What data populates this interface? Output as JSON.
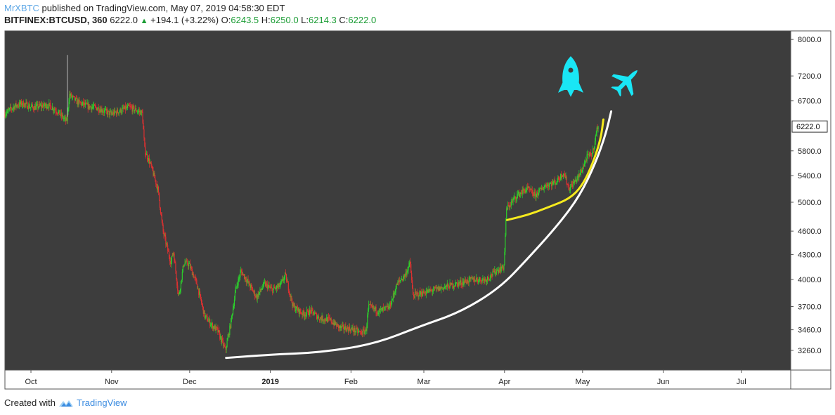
{
  "header": {
    "author": "MrXBTC",
    "published_text": "published on TradingView.com, May 07, 2019 04:58:30 EDT",
    "symbol": "BITFINEX:BTCUSD, 360",
    "last": "6222.0",
    "change": "+194.1 (+3.22%)",
    "o_label": "O:",
    "o_value": "6243.5",
    "h_label": "H:",
    "h_value": "6250.0",
    "l_label": "L:",
    "l_value": "6214.3",
    "c_label": "C:",
    "c_value": "6222.0"
  },
  "footer": {
    "created_with": "Created with",
    "brand": "TradingView"
  },
  "colors": {
    "panel": "#3d3d3d",
    "grid": "#4a4a4a",
    "up": "#2bd62b",
    "down": "#e83030",
    "white_curve": "#ffffff",
    "yellow_curve": "#f5ea1e",
    "icons": "#19e6f5"
  },
  "chart_data": {
    "type": "candlestick",
    "title": "BITFINEX:BTCUSD, 360",
    "scale": "log",
    "ylim": [
      3080,
      8200
    ],
    "y_ticks": [
      "8000.0",
      "7200.0",
      "6700.0",
      "5800.0",
      "5400.0",
      "5000.0",
      "4600.0",
      "4300.0",
      "4000.0",
      "3700.0",
      "3460.0",
      "3260.0"
    ],
    "x_ticks": [
      "Oct",
      "Nov",
      "Dec",
      "2019",
      "Feb",
      "Mar",
      "Apr",
      "May",
      "Jun",
      "Jul"
    ],
    "last_price_label": "6222.0",
    "price_path": [
      [
        "2018-09-21",
        6450
      ],
      [
        "2018-09-25",
        6600
      ],
      [
        "2018-09-28",
        6650
      ],
      [
        "2018-10-02",
        6570
      ],
      [
        "2018-10-05",
        6600
      ],
      [
        "2018-10-08",
        6620
      ],
      [
        "2018-10-11",
        6520
      ],
      [
        "2018-10-15",
        6310
      ],
      [
        "2018-10-16",
        6820
      ],
      [
        "2018-10-19",
        6680
      ],
      [
        "2018-10-23",
        6600
      ],
      [
        "2018-10-27",
        6560
      ],
      [
        "2018-11-01",
        6450
      ],
      [
        "2018-11-05",
        6520
      ],
      [
        "2018-11-08",
        6580
      ],
      [
        "2018-11-13",
        6470
      ],
      [
        "2018-11-14",
        5800
      ],
      [
        "2018-11-16",
        5600
      ],
      [
        "2018-11-19",
        5200
      ],
      [
        "2018-11-21",
        4600
      ],
      [
        "2018-11-24",
        4200
      ],
      [
        "2018-11-25",
        4350
      ],
      [
        "2018-11-27",
        3800
      ],
      [
        "2018-11-29",
        4200
      ],
      [
        "2018-12-01",
        4180
      ],
      [
        "2018-12-04",
        3950
      ],
      [
        "2018-12-07",
        3600
      ],
      [
        "2018-12-10",
        3500
      ],
      [
        "2018-12-12",
        3450
      ],
      [
        "2018-12-15",
        3260
      ],
      [
        "2018-12-17",
        3520
      ],
      [
        "2018-12-19",
        3900
      ],
      [
        "2018-12-21",
        4100
      ],
      [
        "2018-12-24",
        3950
      ],
      [
        "2018-12-27",
        3800
      ],
      [
        "2018-12-30",
        3950
      ],
      [
        "2019-01-02",
        3880
      ],
      [
        "2019-01-05",
        3930
      ],
      [
        "2019-01-07",
        4050
      ],
      [
        "2019-01-10",
        3700
      ],
      [
        "2019-01-14",
        3620
      ],
      [
        "2019-01-17",
        3650
      ],
      [
        "2019-01-20",
        3580
      ],
      [
        "2019-01-24",
        3560
      ],
      [
        "2019-01-28",
        3480
      ],
      [
        "2019-02-01",
        3470
      ],
      [
        "2019-02-05",
        3430
      ],
      [
        "2019-02-07",
        3450
      ],
      [
        "2019-02-08",
        3700
      ],
      [
        "2019-02-12",
        3650
      ],
      [
        "2019-02-16",
        3690
      ],
      [
        "2019-02-19",
        3950
      ],
      [
        "2019-02-22",
        4050
      ],
      [
        "2019-02-24",
        4200
      ],
      [
        "2019-02-25",
        3820
      ],
      [
        "2019-03-01",
        3850
      ],
      [
        "2019-03-05",
        3880
      ],
      [
        "2019-03-10",
        3920
      ],
      [
        "2019-03-15",
        3960
      ],
      [
        "2019-03-20",
        4000
      ],
      [
        "2019-03-25",
        4000
      ],
      [
        "2019-03-29",
        4100
      ],
      [
        "2019-04-01",
        4150
      ],
      [
        "2019-04-02",
        4900
      ],
      [
        "2019-04-06",
        5100
      ],
      [
        "2019-04-10",
        5200
      ],
      [
        "2019-04-13",
        5100
      ],
      [
        "2019-04-17",
        5250
      ],
      [
        "2019-04-21",
        5300
      ],
      [
        "2019-04-24",
        5450
      ],
      [
        "2019-04-26",
        5200
      ],
      [
        "2019-04-30",
        5400
      ],
      [
        "2019-05-03",
        5700
      ],
      [
        "2019-05-05",
        5750
      ],
      [
        "2019-05-07",
        6222
      ]
    ],
    "annotations": [
      {
        "type": "curve",
        "color": "white",
        "points": [
          [
            "2018-12-15",
            3190
          ],
          [
            "2019-01-01",
            3220
          ],
          [
            "2019-01-20",
            3240
          ],
          [
            "2019-02-10",
            3320
          ],
          [
            "2019-02-28",
            3500
          ],
          [
            "2019-03-15",
            3640
          ],
          [
            "2019-03-30",
            3900
          ],
          [
            "2019-04-10",
            4250
          ],
          [
            "2019-04-22",
            4700
          ],
          [
            "2019-04-30",
            5100
          ],
          [
            "2019-05-06",
            5600
          ],
          [
            "2019-05-10",
            6100
          ],
          [
            "2019-05-12",
            6500
          ]
        ]
      },
      {
        "type": "curve",
        "color": "yellow",
        "points": [
          [
            "2019-04-02",
            4750
          ],
          [
            "2019-04-10",
            4820
          ],
          [
            "2019-04-18",
            4930
          ],
          [
            "2019-04-26",
            5050
          ],
          [
            "2019-05-01",
            5250
          ],
          [
            "2019-05-05",
            5600
          ],
          [
            "2019-05-08",
            6000
          ],
          [
            "2019-05-09",
            6350
          ]
        ]
      },
      {
        "type": "icon",
        "name": "rocket-icon"
      },
      {
        "type": "icon",
        "name": "jet-icon"
      }
    ]
  }
}
